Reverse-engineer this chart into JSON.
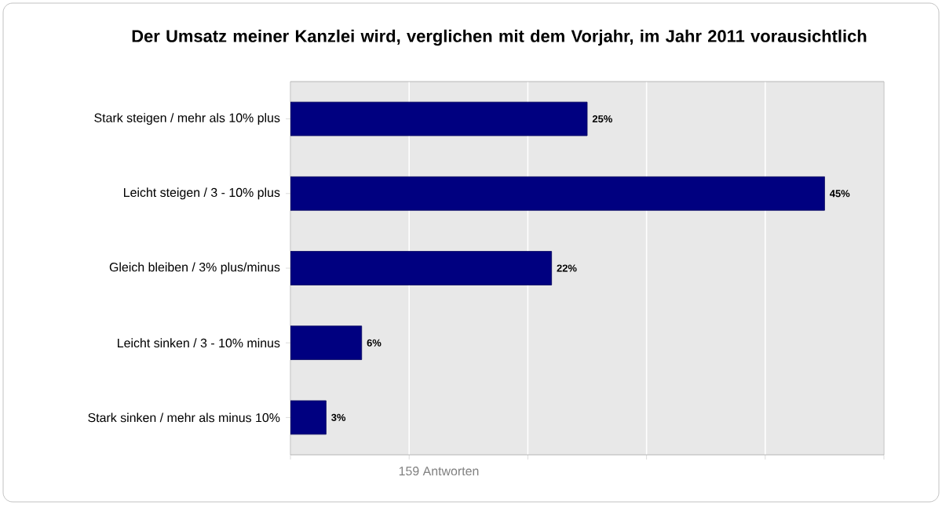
{
  "chart_data": {
    "type": "bar",
    "orientation": "horizontal",
    "title": "Der Umsatz meiner Kanzlei wird, verglichen mit dem Vorjahr, im Jahr 2011 vorausichtlich",
    "categories": [
      "Stark steigen / mehr als 10% plus",
      "Leicht steigen / 3 - 10% plus",
      "Gleich bleiben / 3% plus/minus",
      "Leicht sinken / 3 - 10% minus",
      "Stark sinken / mehr als minus 10%"
    ],
    "values": [
      25,
      45,
      22,
      6,
      3
    ],
    "value_labels": [
      "25%",
      "45%",
      "22%",
      "6%",
      "3%"
    ],
    "color": "#000080",
    "xlabel": "159 Antworten",
    "xlim": [
      0,
      50
    ],
    "xticks": [
      {
        "value": 0,
        "label": null
      },
      {
        "value": 10,
        "label": null
      },
      {
        "value": 20,
        "label": null
      },
      {
        "value": 30,
        "label": null
      },
      {
        "value": 40,
        "label": null
      },
      {
        "value": 50,
        "label": null
      }
    ],
    "tick_labels": "y",
    "grid": "x"
  }
}
